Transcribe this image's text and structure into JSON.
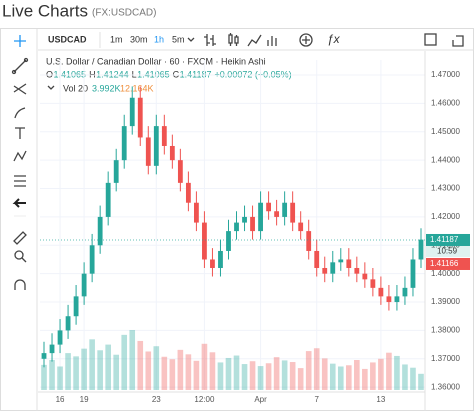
{
  "header": {
    "title": "Live Charts",
    "symbol": "(FX:USDCAD)"
  },
  "toolbar": {
    "symbol": "USDCAD",
    "intervals": [
      "1m",
      "30m",
      "1h",
      "5m"
    ],
    "active_interval": "1h"
  },
  "legend": {
    "title": "U.S. Dollar / Canadian Dollar · 60 · FXCM · Heikin Ashi",
    "ohlc": [
      "O",
      "1.41065",
      "H",
      "1.41244",
      "L",
      "1.41065",
      "C",
      "1.41187",
      "+0.00072 (+0.05%)"
    ],
    "volume": [
      "Vol 20",
      "3.992K",
      "12.164K"
    ]
  },
  "chart_data": {
    "type": "candlestick",
    "categories": [
      null,
      null,
      "16",
      null,
      null,
      "19",
      null,
      null,
      null,
      null,
      null,
      null,
      null,
      null,
      "23",
      null,
      null,
      null,
      null,
      null,
      "12:00",
      null,
      null,
      null,
      null,
      null,
      null,
      "Apr",
      null,
      null,
      null,
      null,
      null,
      null,
      "7",
      null,
      null,
      null,
      null,
      null,
      null,
      null,
      "13",
      null,
      null,
      null,
      null,
      null
    ],
    "open": [
      1.37,
      1.372,
      1.375,
      1.38,
      1.385,
      1.392,
      1.4,
      1.41,
      1.42,
      1.432,
      1.44,
      1.452,
      1.462,
      1.448,
      1.438,
      1.452,
      1.445,
      1.44,
      1.432,
      1.425,
      1.418,
      1.405,
      1.402,
      1.408,
      1.415,
      1.418,
      1.42,
      1.415,
      1.425,
      1.422,
      1.42,
      1.425,
      1.418,
      1.415,
      1.408,
      1.402,
      1.4,
      1.404,
      1.405,
      1.402,
      1.4,
      1.398,
      1.395,
      1.392,
      1.39,
      1.392,
      1.395,
      1.405
    ],
    "high": [
      1.376,
      1.379,
      1.384,
      1.389,
      1.396,
      1.404,
      1.414,
      1.424,
      1.436,
      1.444,
      1.456,
      1.466,
      1.466,
      1.452,
      1.456,
      1.456,
      1.449,
      1.444,
      1.436,
      1.429,
      1.422,
      1.409,
      1.412,
      1.419,
      1.422,
      1.424,
      1.424,
      1.429,
      1.429,
      1.426,
      1.429,
      1.429,
      1.422,
      1.419,
      1.412,
      1.406,
      1.408,
      1.409,
      1.409,
      1.406,
      1.404,
      1.402,
      1.399,
      1.396,
      1.396,
      1.399,
      1.409,
      1.416
    ],
    "low": [
      1.367,
      1.369,
      1.372,
      1.377,
      1.382,
      1.389,
      1.397,
      1.407,
      1.417,
      1.429,
      1.437,
      1.449,
      1.445,
      1.435,
      1.435,
      1.442,
      1.437,
      1.429,
      1.422,
      1.415,
      1.402,
      1.399,
      1.399,
      1.405,
      1.412,
      1.415,
      1.412,
      1.412,
      1.419,
      1.417,
      1.417,
      1.415,
      1.412,
      1.405,
      1.399,
      1.397,
      1.397,
      1.401,
      1.399,
      1.397,
      1.395,
      1.392,
      1.389,
      1.387,
      1.387,
      1.389,
      1.392,
      1.402
    ],
    "close": [
      1.372,
      1.375,
      1.38,
      1.385,
      1.392,
      1.4,
      1.41,
      1.42,
      1.432,
      1.44,
      1.452,
      1.462,
      1.448,
      1.438,
      1.452,
      1.445,
      1.44,
      1.432,
      1.425,
      1.418,
      1.405,
      1.402,
      1.408,
      1.415,
      1.418,
      1.42,
      1.415,
      1.425,
      1.422,
      1.42,
      1.425,
      1.418,
      1.415,
      1.408,
      1.402,
      1.4,
      1.404,
      1.405,
      1.402,
      1.4,
      1.398,
      1.395,
      1.392,
      1.39,
      1.392,
      1.395,
      1.405,
      1.412
    ],
    "volume": [
      6200,
      7400,
      5800,
      9100,
      8300,
      10200,
      12500,
      9800,
      11200,
      8700,
      13600,
      14800,
      12100,
      9500,
      10800,
      8200,
      7600,
      9900,
      8800,
      7200,
      11400,
      9300,
      6800,
      7900,
      8500,
      6400,
      7100,
      5900,
      6600,
      8100,
      7300,
      6900,
      5400,
      9600,
      10300,
      7800,
      6500,
      5800,
      6100,
      7400,
      5200,
      6800,
      7700,
      9200,
      8400,
      6300,
      5500,
      3992
    ],
    "up_color": "#26a69a",
    "down_color": "#ef5350",
    "ylim": [
      1.359,
      1.4753
    ],
    "yticks": [
      {
        "value": 1.36,
        "label": "1.36000"
      },
      {
        "value": 1.37,
        "label": "1.37000"
      },
      {
        "value": 1.38,
        "label": "1.38000"
      },
      {
        "value": 1.39,
        "label": "1.39000"
      },
      {
        "value": 1.4,
        "label": "1.40000"
      },
      {
        "value": 1.41,
        "label": "1.41000"
      },
      {
        "value": 1.42,
        "label": "1.42000"
      },
      {
        "value": 1.43,
        "label": "1.43000"
      },
      {
        "value": 1.44,
        "label": "1.44000"
      },
      {
        "value": 1.45,
        "label": "1.45000"
      },
      {
        "value": 1.46,
        "label": "1.46000"
      },
      {
        "value": 1.47,
        "label": "1.47000"
      }
    ],
    "grid": true,
    "last_price": 1.41187,
    "countdown": "10:59",
    "second_price": 1.41166
  }
}
